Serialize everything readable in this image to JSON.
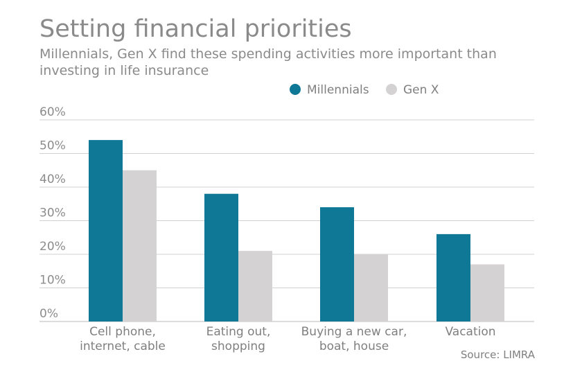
{
  "chart_data": {
    "type": "bar",
    "title": "Setting financial priorities",
    "subtitle": "Millennials, Gen X find these spending activities more important than investing in life insurance",
    "categories": [
      [
        "Cell phone,",
        "internet, cable"
      ],
      [
        "Eating out,",
        "shopping"
      ],
      [
        "Buying a new car,",
        "boat, house"
      ],
      [
        "Vacation"
      ]
    ],
    "series": [
      {
        "name": "Millennials",
        "color": "#0f7896",
        "values": [
          54,
          38,
          34,
          26
        ]
      },
      {
        "name": "Gen X",
        "color": "#d4d2d3",
        "values": [
          45,
          21,
          20,
          17
        ]
      }
    ],
    "yticks": [
      "0%",
      "10%",
      "20%",
      "30%",
      "40%",
      "50%",
      "60%"
    ],
    "ylim": [
      0,
      60
    ],
    "grid": true,
    "legend_position": "top",
    "xlabel": "",
    "ylabel": ""
  },
  "source": "Source: LIMRA"
}
